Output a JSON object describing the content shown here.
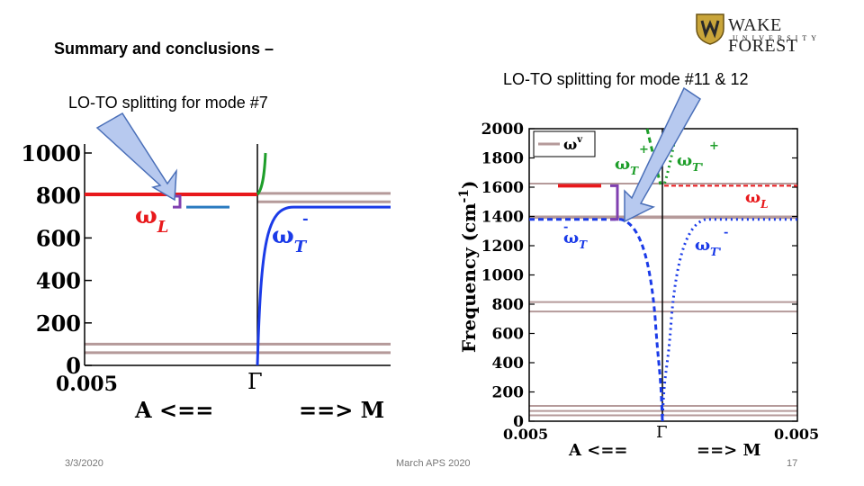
{
  "slide": {
    "title": "Summary and conclusions –",
    "date": "3/3/2020",
    "event": "March APS 2020",
    "page": "17"
  },
  "logo": {
    "name": "WAKE FOREST",
    "sub": "UNIVERSITY"
  },
  "chart_data": [
    {
      "type": "line",
      "heading": "LO-TO splitting for mode #7",
      "ylim": [
        0,
        1000
      ],
      "yticks": [
        "0",
        "200",
        "400",
        "600",
        "800",
        "1000"
      ],
      "xtick_left": "0.005",
      "xtick_center": "Γ",
      "xlabel_left": "A <==",
      "xlabel_right": "==> M",
      "ylabel": "",
      "gray_levels": [
        60,
        100,
        770,
        810
      ],
      "series": [
        {
          "label_main": "ω",
          "label_sub": "L",
          "color": "#e8191c",
          "left_value": 805,
          "style": "solid"
        },
        {
          "label_main": "ω",
          "label_sub": "T",
          "label_sup": "-",
          "color": "#1b3be8",
          "plateau": 745,
          "style": "solid"
        },
        {
          "color": "#1e9e2a",
          "near_gamma_from": 805,
          "near_gamma_to": 1000,
          "style": "solid"
        }
      ],
      "legend_segments": [
        {
          "color": "#e8191c",
          "value": 805
        },
        {
          "color": "#2a7ac0",
          "value": 745
        }
      ]
    },
    {
      "type": "line",
      "heading": "LO-TO splitting for mode #11 & 12",
      "ylim": [
        0,
        2000
      ],
      "yticks": [
        "0",
        "200",
        "400",
        "600",
        "800",
        "1000",
        "1200",
        "1400",
        "1600",
        "1800",
        "2000"
      ],
      "xtick_left": "0.005",
      "xtick_center": "Γ",
      "xtick_right": "0.005",
      "xlabel_left": "A <==",
      "xlabel_right": "==> M",
      "ylabel_main": "Frequency (cm",
      "ylabel_sup": "-1",
      "ylabel_end": ")",
      "legend": [
        {
          "main": "ω",
          "sup": "v",
          "color": "#b59a9a"
        }
      ],
      "gray_levels": [
        40,
        70,
        105,
        750,
        815,
        1390,
        1400,
        1625
      ],
      "series": [
        {
          "label_main": "ω",
          "label_sub": "L",
          "color": "#e8191c",
          "left_value": 1610,
          "style": "dashed"
        },
        {
          "label_main": "ω",
          "label_sub": "T",
          "label_sup": "-",
          "color": "#1b3be8",
          "plateau": 1380,
          "style": "dashed"
        },
        {
          "label_main": "ω",
          "label_sub": "T'",
          "label_sup": "-",
          "color": "#1b3be8",
          "plateau": 1380,
          "style": "dotted"
        },
        {
          "label_main": "ω",
          "label_sub": "T",
          "label_sup": "+",
          "color": "#1e9e2a",
          "style": "dashed"
        },
        {
          "label_main": "ω",
          "label_sub": "T'",
          "label_sup": "+",
          "color": "#1e9e2a",
          "style": "dotted"
        }
      ]
    }
  ]
}
